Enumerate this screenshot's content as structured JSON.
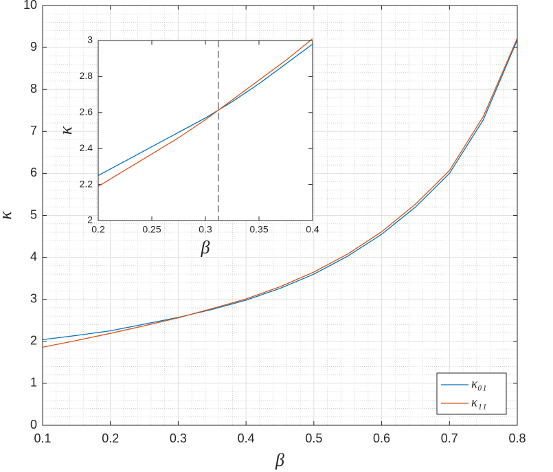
{
  "chart_data": [
    {
      "type": "line",
      "x_label": "β",
      "y_label": "κ",
      "x": [
        0.1,
        0.15,
        0.2,
        0.25,
        0.3,
        0.35,
        0.4,
        0.45,
        0.5,
        0.55,
        0.6,
        0.65,
        0.7,
        0.75,
        0.8
      ],
      "series": [
        {
          "name": "κ₀₁",
          "color": "#0072bd",
          "values": [
            2.04,
            2.14,
            2.25,
            2.41,
            2.57,
            2.76,
            2.98,
            3.26,
            3.6,
            4.03,
            4.55,
            5.2,
            6.0,
            7.28,
            9.18
          ]
        },
        {
          "name": "κ₁₁",
          "color": "#d95319",
          "values": [
            1.86,
            2.02,
            2.19,
            2.37,
            2.56,
            2.78,
            3.01,
            3.3,
            3.65,
            4.08,
            4.61,
            5.27,
            6.07,
            7.36,
            9.22
          ]
        }
      ],
      "xlim": [
        0.1,
        0.8
      ],
      "xticks": [
        0.1,
        0.2,
        0.3,
        0.4,
        0.5,
        0.6,
        0.7,
        0.8
      ],
      "ylim": [
        0,
        10
      ],
      "yticks": [
        0,
        1,
        2,
        3,
        4,
        5,
        6,
        7,
        8,
        9,
        10
      ],
      "grid": true,
      "minor_grid": true,
      "legend": "lower right"
    },
    {
      "type": "line",
      "x_label": "β",
      "y_label": "κ",
      "x": [
        0.2,
        0.225,
        0.25,
        0.275,
        0.3,
        0.325,
        0.35,
        0.375,
        0.4
      ],
      "series": [
        {
          "name": "κ₀₁",
          "color": "#0072bd",
          "values": [
            2.25,
            2.33,
            2.41,
            2.49,
            2.57,
            2.66,
            2.76,
            2.87,
            2.98
          ]
        },
        {
          "name": "κ₁₁",
          "color": "#d95319",
          "values": [
            2.19,
            2.28,
            2.37,
            2.46,
            2.56,
            2.67,
            2.78,
            2.89,
            3.01
          ]
        }
      ],
      "xlim": [
        0.2,
        0.4
      ],
      "xticks": [
        0.2,
        0.25,
        0.3,
        0.35,
        0.4
      ],
      "ylim": [
        2,
        3
      ],
      "yticks": [
        2,
        2.2,
        2.4,
        2.6,
        2.8,
        3
      ],
      "grid": false,
      "vline": 0.312
    }
  ]
}
